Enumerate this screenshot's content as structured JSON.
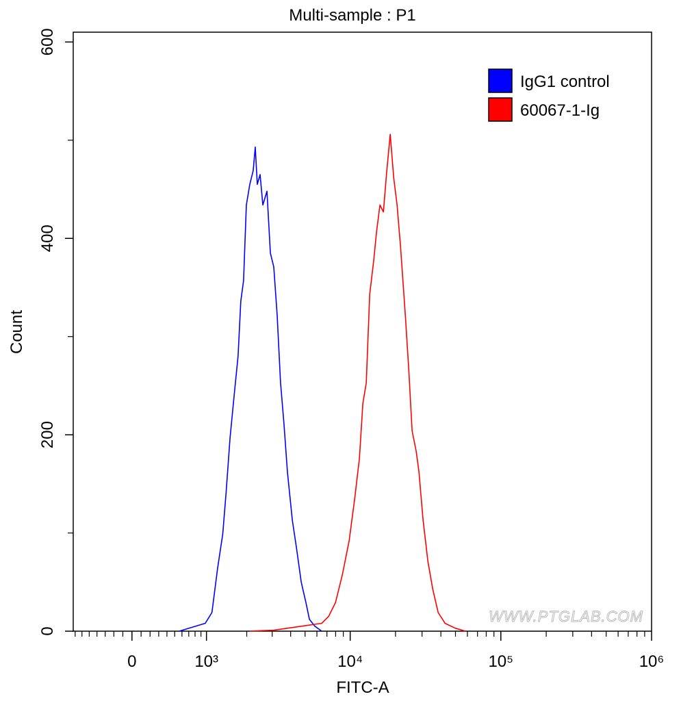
{
  "chart_data": {
    "type": "line",
    "title": "Multi-sample : P1",
    "xlabel": "FITC-A",
    "ylabel": "Count",
    "xscale": "asinh",
    "xscale_cofactor": 714,
    "xlim": [
      -730,
      1000000
    ],
    "ylim": [
      0,
      610
    ],
    "xticks": [
      0,
      {
        "value": 1000,
        "label": "10³"
      },
      {
        "value": 10000,
        "label": "10⁴"
      },
      {
        "value": 100000,
        "label": "10⁵"
      },
      {
        "value": 1000000,
        "label": "10⁶"
      }
    ],
    "xminorticks": [
      -700,
      -600,
      -500,
      -400,
      -300,
      -200,
      -100,
      100,
      200,
      300,
      400,
      500,
      600,
      700,
      800,
      900,
      2000,
      3000,
      4000,
      5000,
      6000,
      7000,
      8000,
      9000,
      20000,
      30000,
      40000,
      50000,
      60000,
      70000,
      80000,
      90000,
      200000,
      300000,
      400000,
      500000,
      600000,
      700000,
      800000,
      900000
    ],
    "yticks": [
      0,
      200,
      400,
      600
    ],
    "yminorticks": [
      100,
      300,
      500
    ],
    "legend": "upper right",
    "watermark": "WWW.PTGLAB.COM",
    "series": [
      {
        "name": "IgG1 control",
        "color": "#0000ff",
        "x": [
          561,
          977,
          1106,
          1224,
          1340,
          1419,
          1518,
          1623,
          1735,
          1815,
          1899,
          1987,
          2101,
          2219,
          2294,
          2370,
          2477,
          2588,
          2762,
          2915,
          3074,
          3242,
          3418,
          3606,
          3806,
          4106,
          4377,
          4712,
          5069,
          5348,
          5819,
          6462
        ],
        "values": [
          0,
          8,
          19,
          64,
          99,
          141,
          197,
          239,
          280,
          336,
          357,
          434,
          455,
          469,
          493,
          455,
          465,
          434,
          448,
          385,
          371,
          322,
          253,
          211,
          162,
          113,
          85,
          50,
          29,
          12,
          5,
          0
        ]
      },
      {
        "name": "60067-1-Ig",
        "color": "#ff0000",
        "x": [
          2101,
          3074,
          4712,
          6462,
          7180,
          7977,
          8856,
          9839,
          10696,
          11517,
          12140,
          12790,
          13480,
          14345,
          14950,
          15765,
          16620,
          17510,
          18450,
          19450,
          20485,
          21590,
          23235,
          24480,
          25775,
          27450,
          28630,
          30490,
          32810,
          35310,
          38380,
          42650,
          49900,
          58350
        ],
        "values": [
          0,
          1,
          5,
          8,
          15,
          29,
          57,
          92,
          134,
          176,
          232,
          253,
          343,
          378,
          406,
          434,
          427,
          469,
          506,
          462,
          434,
          392,
          322,
          267,
          204,
          183,
          162,
          113,
          71,
          43,
          19,
          8,
          3,
          0
        ]
      }
    ]
  }
}
